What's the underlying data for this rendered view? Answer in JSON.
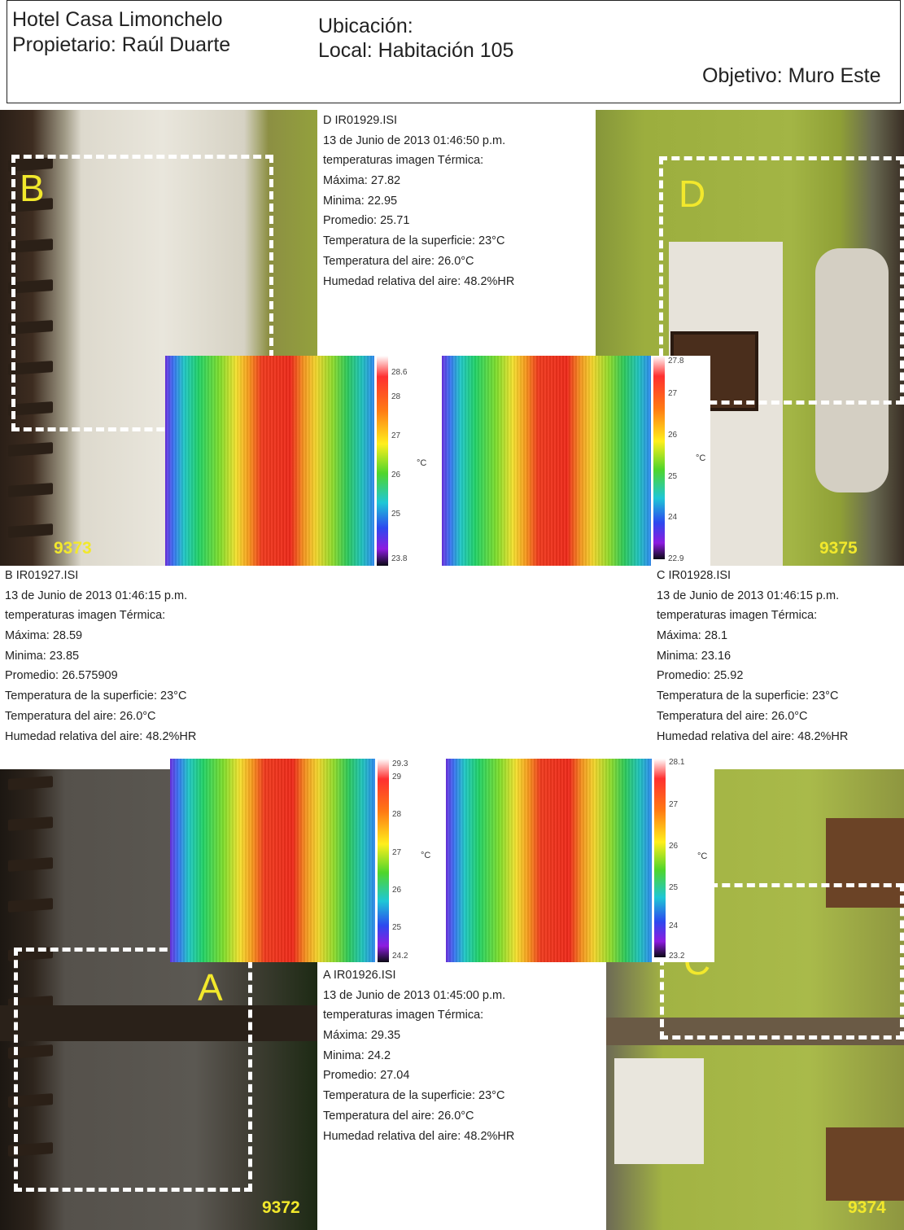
{
  "header": {
    "hotel": "Hotel Casa Limonchelo",
    "owner": "Propietario: Raúl Duarte",
    "location": "Ubicación:",
    "local": "Local: Habitación 105",
    "objective": "Objetivo: Muro Este"
  },
  "colors": {
    "label_yellow": "#f2e82c",
    "frame_dash": "#ffffff"
  },
  "photos": {
    "b": {
      "letter": "B",
      "number": "9373"
    },
    "d": {
      "letter": "D",
      "number": "9375"
    },
    "a": {
      "letter": "A",
      "number": "9372"
    },
    "c": {
      "letter": "C",
      "number": "9374"
    }
  },
  "thermal_b": {
    "scale_top": "28.6",
    "scale_bottom": "23.8",
    "ticks": [
      "28",
      "27",
      "26",
      "25"
    ],
    "unit": "°C"
  },
  "thermal_d": {
    "scale_top": "27.8",
    "scale_bottom": "22.9",
    "ticks": [
      "27",
      "26",
      "25",
      "24"
    ],
    "unit": "°C"
  },
  "thermal_a": {
    "scale_top": "29.3",
    "scale_bottom": "24.2",
    "ticks": [
      "29",
      "28",
      "27",
      "26",
      "25"
    ],
    "unit": "°C"
  },
  "thermal_c": {
    "scale_top": "28.1",
    "scale_bottom": "23.2",
    "ticks": [
      "27",
      "26",
      "25",
      "24"
    ],
    "unit": "°C"
  },
  "info_d": {
    "file": "D IR01929.ISI",
    "date": "13 de Junio de 2013  01:46:50 p.m.",
    "heading": "temperaturas imagen Térmica:",
    "max": "Máxima: 27.82",
    "min": "Minima: 22.95",
    "avg": "Promedio:  25.71",
    "surface": "Temperatura de la superficie: 23°C",
    "air": "Temperatura del aire: 26.0°C",
    "humidity": "Humedad relativa del aire: 48.2%HR"
  },
  "info_b": {
    "file": "B  IR01927.ISI",
    "date": " 13 de Junio de 2013  01:46:15 p.m.",
    "heading": "temperaturas imagen Térmica:",
    "max": "Máxima: 28.59",
    "min": "Minima: 23.85",
    "avg": "Promedio:  26.575909",
    "surface": "Temperatura de la superficie: 23°C",
    "air": "Temperatura del aire: 26.0°C",
    "humidity": "Humedad relativa del aire: 48.2%HR"
  },
  "info_c": {
    "file": "C  IR01928.ISI",
    "date": "13 de Junio de 2013  01:46:15 p.m.",
    "heading": "temperaturas imagen Térmica:",
    "max": "Máxima: 28.1",
    "min": "Minima: 23.16",
    "avg": "Promedio:  25.92",
    "surface": "Temperatura de la superficie: 23°C",
    "air": "Temperatura del aire: 26.0°C",
    "humidity": "Humedad relativa del aire: 48.2%HR"
  },
  "info_a": {
    "file": "A  IR01926.ISI",
    "date": "13 de Junio de 2013  01:45:00 p.m.",
    "heading": "temperaturas imagen Térmica:",
    "max": "Máxima: 29.35",
    "min": "Minima: 24.2",
    "avg": "Promedio:  27.04",
    "surface": "Temperatura de la superficie: 23°C",
    "air": "Temperatura del aire: 26.0°C",
    "humidity": "Humedad relativa del aire: 48.2%HR"
  }
}
